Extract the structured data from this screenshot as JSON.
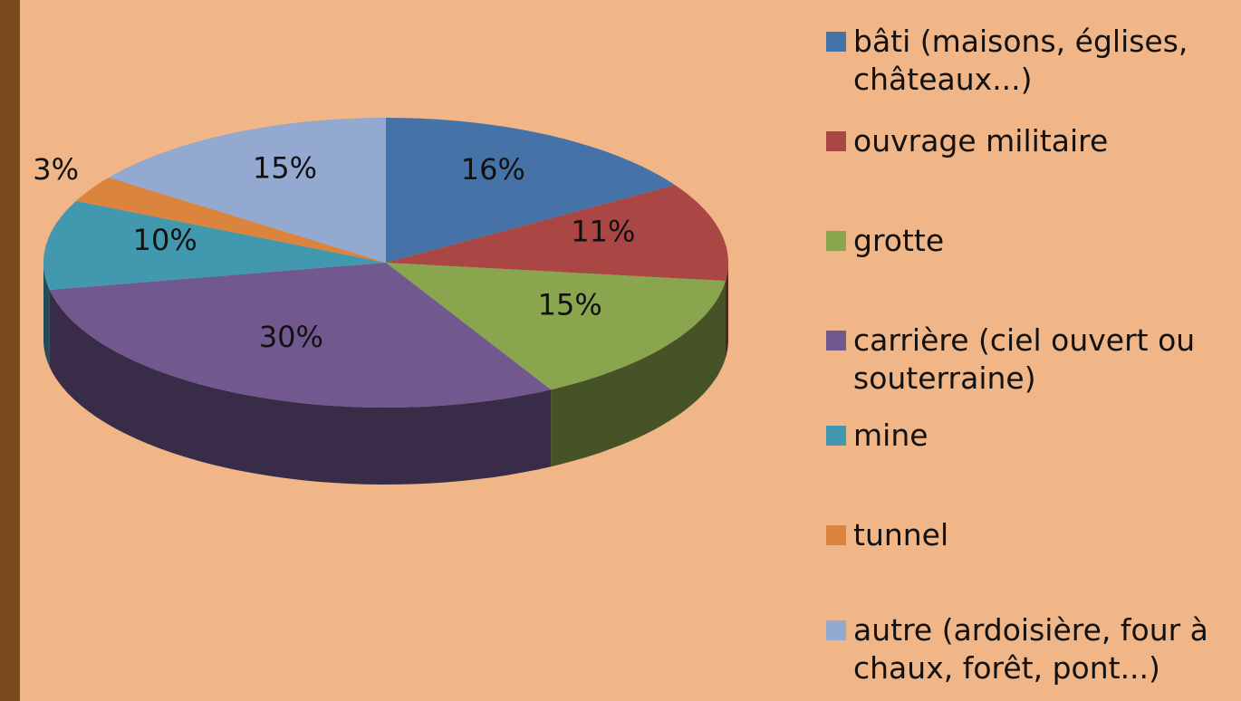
{
  "chart_data": {
    "type": "pie",
    "categories": [
      "bâti (maisons, églises, châteaux...)",
      "ouvrage militaire",
      "grotte",
      "carrière (ciel ouvert ou souterraine)",
      "mine",
      "tunnel",
      "autre (ardoisière, four à chaux, forêt, pont...)"
    ],
    "values": [
      16,
      11,
      15,
      30,
      10,
      3,
      15
    ],
    "value_labels": [
      "16%",
      "11%",
      "15%",
      "30%",
      "10%",
      "3%",
      "15%"
    ],
    "colors": [
      "#4572a7",
      "#aa4643",
      "#89a54e",
      "#71588f",
      "#4198af",
      "#db843d",
      "#93a9cf"
    ],
    "legend": "right"
  }
}
